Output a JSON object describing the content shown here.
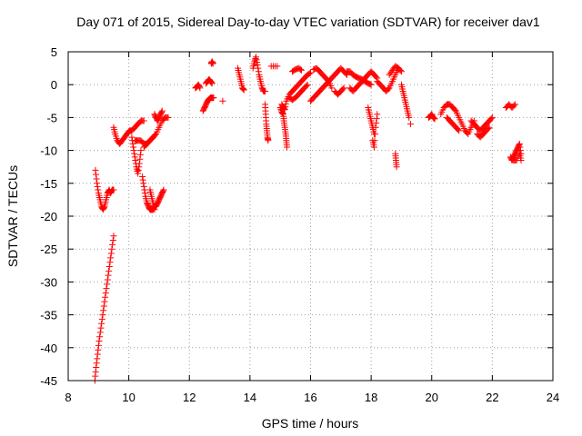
{
  "chart_data": {
    "type": "scatter",
    "title": "Day 071 of 2015, Sidereal Day-to-day VTEC variation (SDTVAR) for receiver dav1",
    "xlabel": "GPS time / hours",
    "ylabel": "SDTVAR / TECUs",
    "xlim": [
      8,
      24
    ],
    "ylim": [
      -45,
      5
    ],
    "xticks": [
      8,
      10,
      12,
      14,
      16,
      18,
      20,
      22,
      24
    ],
    "yticks": [
      5,
      0,
      -5,
      -10,
      -15,
      -20,
      -25,
      -30,
      -35,
      -40,
      -45
    ],
    "grid": true,
    "marker": "plus",
    "color": "#ff0000",
    "segments": [
      {
        "x": [
          8.88,
          8.92,
          8.97,
          9.02,
          9.08,
          9.14,
          9.2,
          9.26,
          9.32,
          9.38,
          9.44,
          9.5
        ],
        "y": [
          -45,
          -43,
          -41,
          -39,
          -37,
          -35,
          -33,
          -31,
          -29,
          -27,
          -25,
          -23
        ]
      },
      {
        "x": [
          8.9,
          8.95,
          9.0,
          9.05,
          9.1,
          9.15,
          9.2,
          9.25,
          9.3,
          9.35,
          9.4,
          9.45,
          9.5
        ],
        "y": [
          -13,
          -15,
          -16.5,
          -17.5,
          -18.5,
          -19,
          -18.5,
          -17.5,
          -16.5,
          -16,
          -16.5,
          -16,
          -16
        ]
      },
      {
        "x": [
          9.5,
          9.55,
          9.62,
          9.7,
          9.78,
          9.86,
          9.94,
          10.02,
          10.1,
          10.2,
          10.3,
          10.4,
          10.5
        ],
        "y": [
          -6.5,
          -7.5,
          -8.5,
          -9,
          -8.5,
          -8,
          -7.5,
          -7,
          -7,
          -6.5,
          -6,
          -5.5,
          -5.5
        ]
      },
      {
        "x": [
          10.1,
          10.15,
          10.2,
          10.25,
          10.3,
          10.35,
          10.4
        ],
        "y": [
          -8,
          -9.5,
          -11,
          -12.5,
          -13.5,
          -12,
          -10
        ]
      },
      {
        "x": [
          10.45,
          10.5,
          10.55,
          10.6,
          10.65,
          10.7,
          10.75,
          10.8,
          10.85,
          10.9,
          10.95,
          11.0,
          11.05,
          11.1,
          11.15
        ],
        "y": [
          -14,
          -15.5,
          -17,
          -18,
          -18.5,
          -19,
          -19,
          -19,
          -18.5,
          -18.5,
          -18,
          -17.5,
          -17,
          -16.5,
          -16
        ]
      },
      {
        "x": [
          10.7,
          10.75,
          10.8,
          10.85
        ],
        "y": [
          -16,
          -17,
          -18,
          -19
        ]
      },
      {
        "x": [
          10.5,
          10.6,
          10.7,
          10.8,
          10.9,
          11.0,
          11.1,
          11.2,
          11.3
        ],
        "y": [
          -9.5,
          -9,
          -8.5,
          -8,
          -7.5,
          -6.5,
          -5.5,
          -5,
          -5
        ]
      },
      {
        "x": [
          10.2,
          10.3,
          10.4,
          10.5,
          10.6,
          10.7,
          10.8
        ],
        "y": [
          -8.5,
          -8.5,
          -8.5,
          -9,
          -9,
          -8.5,
          -8
        ]
      },
      {
        "x": [
          10.85,
          10.9,
          10.95,
          11.0,
          11.05,
          11.1
        ],
        "y": [
          -4.5,
          -5,
          -5.5,
          -5,
          -4.5,
          -4
        ]
      },
      {
        "x": [
          12.2,
          12.25,
          12.3,
          12.35
        ],
        "y": [
          -0.5,
          -0.3,
          0.0,
          -0.5
        ]
      },
      {
        "x": [
          12.45,
          12.5,
          12.55,
          12.6,
          12.65,
          12.7,
          12.75,
          12.8
        ],
        "y": [
          -4,
          -3.5,
          -3,
          -2.5,
          -2.2,
          -2,
          -2,
          -2
        ]
      },
      {
        "x": [
          12.55,
          12.6,
          12.65,
          12.7,
          12.75
        ],
        "y": [
          0.2,
          0.5,
          0.8,
          0.5,
          0.2
        ]
      },
      {
        "x": [
          12.72,
          12.75,
          12.78
        ],
        "y": [
          3.2,
          3.5,
          3.2
        ]
      },
      {
        "x": [
          13.1
        ],
        "y": [
          -2.5
        ]
      },
      {
        "x": [
          13.6,
          13.65,
          13.7,
          13.75,
          13.8
        ],
        "y": [
          2.5,
          1.5,
          0.5,
          -0.5,
          -0.8
        ]
      },
      {
        "x": [
          14.1,
          14.15,
          14.2,
          14.25,
          14.3,
          14.35,
          14.4,
          14.45,
          14.5
        ],
        "y": [
          2.5,
          3.5,
          4.2,
          3,
          1.5,
          0.5,
          -0.5,
          -1,
          -1
        ]
      },
      {
        "x": [
          14.5,
          14.52,
          14.54,
          14.56,
          14.58,
          14.6
        ],
        "y": [
          -3,
          -4.5,
          -6,
          -7,
          -8,
          -8.5
        ]
      },
      {
        "x": [
          14.7,
          14.9
        ],
        "y": [
          2.8,
          2.8
        ]
      },
      {
        "x": [
          15.0,
          15.05,
          15.1,
          15.12,
          15.15,
          15.18,
          15.2,
          15.22
        ],
        "y": [
          -3.5,
          -4.2,
          -4.5,
          -5.5,
          -6.5,
          -7.5,
          -8.5,
          -9.5
        ]
      },
      {
        "x": [
          15.05,
          15.1,
          15.15,
          15.2,
          15.3,
          15.4,
          15.5,
          15.6,
          15.7,
          15.8,
          15.9,
          16.0
        ],
        "y": [
          -3,
          -3.5,
          -3.8,
          -2.5,
          -1.5,
          -1,
          -0.5,
          0,
          0.5,
          1,
          1.5,
          1.8
        ]
      },
      {
        "x": [
          15.3,
          15.4,
          15.5,
          15.6,
          15.7,
          15.8,
          15.9
        ],
        "y": [
          -2,
          -2.3,
          -2,
          -1.5,
          -1,
          -0.5,
          0
        ]
      },
      {
        "x": [
          15.4,
          15.5,
          15.6,
          15.7
        ],
        "y": [
          2,
          2.3,
          2.5,
          2.2
        ]
      },
      {
        "x": [
          16.0,
          16.1,
          16.2,
          16.3,
          16.4,
          16.5,
          16.6,
          16.7,
          16.8,
          16.9,
          17.0,
          17.1,
          17.2
        ],
        "y": [
          -2.5,
          -2,
          -1.5,
          -1,
          -0.5,
          0,
          0.5,
          1,
          1.5,
          2,
          2.5,
          2,
          1.5
        ]
      },
      {
        "x": [
          16.1,
          16.2,
          16.3,
          16.4,
          16.5,
          16.6,
          16.7
        ],
        "y": [
          2.3,
          2.5,
          2,
          1.5,
          1,
          0.5,
          -0.5
        ]
      },
      {
        "x": [
          16.8,
          16.9,
          17.0,
          17.1
        ],
        "y": [
          -1,
          -1.5,
          -1,
          -0.5
        ]
      },
      {
        "x": [
          17.2,
          17.3,
          17.4,
          17.5,
          17.6,
          17.7,
          17.8,
          17.9,
          18.0
        ],
        "y": [
          2,
          2,
          1.5,
          1.2,
          1,
          0.8,
          0.5,
          0.2,
          0
        ]
      },
      {
        "x": [
          17.3,
          17.4,
          17.5,
          17.6,
          17.7,
          17.8,
          17.9,
          18.0,
          18.1,
          18.2
        ],
        "y": [
          -0.5,
          -1,
          -0.5,
          0,
          0.5,
          1,
          1.5,
          2,
          1.5,
          1
        ]
      },
      {
        "x": [
          17.9,
          17.95,
          18.0,
          18.05,
          18.1
        ],
        "y": [
          -3.5,
          -4.5,
          -5.5,
          -6.5,
          -7.5
        ]
      },
      {
        "x": [
          18.05,
          18.1,
          18.15,
          18.2
        ],
        "y": [
          -8.5,
          -9.5,
          -6.5,
          -4.5
        ]
      },
      {
        "x": [
          18.2,
          18.3,
          18.4,
          18.5,
          18.6,
          18.7,
          18.8,
          18.9,
          19.0
        ],
        "y": [
          0.5,
          0,
          -0.5,
          -1,
          -0.5,
          0.5,
          1.5,
          2.5,
          2
        ]
      },
      {
        "x": [
          18.6,
          18.7,
          18.8,
          18.9
        ],
        "y": [
          1.5,
          2.2,
          2.8,
          2.5
        ]
      },
      {
        "x": [
          18.8,
          18.82,
          18.84
        ],
        "y": [
          -10.5,
          -11.5,
          -12.5
        ]
      },
      {
        "x": [
          19.0,
          19.05,
          19.1,
          19.15,
          19.2,
          19.25
        ],
        "y": [
          0,
          -1,
          -2,
          -3,
          -4,
          -5
        ]
      },
      {
        "x": [
          19.3
        ],
        "y": [
          -6
        ]
      },
      {
        "x": [
          19.9,
          19.95,
          20.0,
          20.05,
          20.1
        ],
        "y": [
          -5,
          -4.8,
          -4.5,
          -5,
          -5.2
        ]
      },
      {
        "x": [
          20.3,
          20.4,
          20.5,
          20.6,
          20.7,
          20.8,
          20.9,
          21.0,
          21.1,
          21.2,
          21.3,
          21.4
        ],
        "y": [
          -4.5,
          -3.5,
          -3,
          -3,
          -3.5,
          -4,
          -5,
          -6,
          -7,
          -7.5,
          -6.5,
          -5.5
        ]
      },
      {
        "x": [
          20.5,
          20.6,
          20.7,
          20.8,
          20.9
        ],
        "y": [
          -5,
          -5.5,
          -6,
          -6.5,
          -7
        ]
      },
      {
        "x": [
          21.3,
          21.4,
          21.5,
          21.6,
          21.7,
          21.8,
          21.9,
          22.0
        ],
        "y": [
          -5.5,
          -6,
          -6.5,
          -7,
          -6.5,
          -6,
          -5.5,
          -5
        ]
      },
      {
        "x": [
          21.5,
          21.6,
          21.7,
          21.8,
          21.9
        ],
        "y": [
          -7.5,
          -8,
          -7.5,
          -7,
          -6.5
        ]
      },
      {
        "x": [
          22.45,
          22.55,
          22.65,
          22.75
        ],
        "y": [
          -3.5,
          -3,
          -3.5,
          -3
        ]
      },
      {
        "x": [
          22.6,
          22.65,
          22.7,
          22.75,
          22.8,
          22.85,
          22.9,
          22.95
        ],
        "y": [
          -11,
          -11.5,
          -11,
          -10.5,
          -10,
          -9.5,
          -9,
          -10.5
        ]
      },
      {
        "x": [
          22.7,
          22.8,
          22.9,
          22.95
        ],
        "y": [
          -11.5,
          -11.5,
          -10.5,
          -11.5
        ]
      }
    ]
  }
}
